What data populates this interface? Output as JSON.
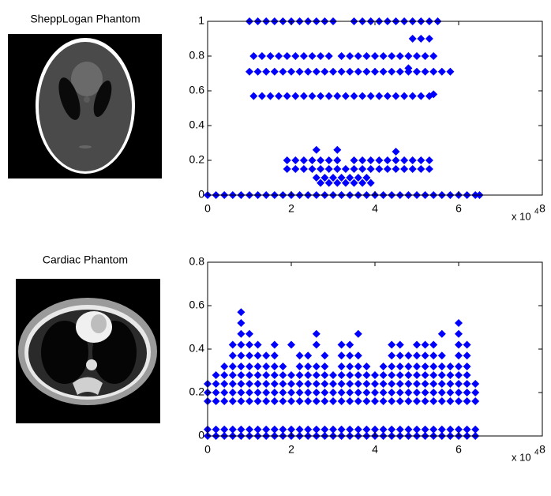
{
  "chart_data": [
    {
      "type": "scatter",
      "title": "SheppLogan Phantom",
      "color": "#0000ff",
      "xlim": [
        0,
        8
      ],
      "xticks": [
        0,
        2,
        4,
        6,
        8
      ],
      "ylim": [
        0,
        1
      ],
      "yticks": [
        0,
        0.2,
        0.4,
        0.6,
        0.8,
        1
      ],
      "x_multiplier": {
        "base": "x 10",
        "exponent": "4"
      },
      "rows": [
        {
          "y": 1,
          "x": [
            1,
            1.2,
            1.4,
            1.6,
            1.8,
            2,
            2.2,
            2.4,
            2.6,
            2.8,
            3,
            3.5,
            3.7,
            3.9,
            4.1,
            4.3,
            4.5,
            4.7,
            4.9,
            5.1,
            5.3,
            5.5
          ]
        },
        {
          "y": 0.9,
          "x": [
            4.9,
            5.1,
            5.3
          ]
        },
        {
          "y": 0.8,
          "x": [
            1.1,
            1.3,
            1.5,
            1.7,
            1.9,
            2.1,
            2.3,
            2.5,
            2.7,
            2.9,
            3.2,
            3.4,
            3.6,
            3.8,
            4,
            4.2,
            4.4,
            4.6,
            4.8,
            5,
            5.2,
            5.4
          ]
        },
        {
          "y": 0.71,
          "x": [
            1,
            1.2,
            1.4,
            1.6,
            1.8,
            2,
            2.2,
            2.4,
            2.6,
            2.8,
            3,
            3.2,
            3.4,
            3.6,
            3.8,
            4,
            4.2,
            4.4,
            4.6,
            4.8,
            5,
            5.2,
            5.4,
            5.6,
            5.8
          ]
        },
        {
          "y": 0.57,
          "x": [
            1.1,
            1.3,
            1.5,
            1.7,
            1.9,
            2.1,
            2.3,
            2.5,
            2.7,
            2.9,
            3.1,
            3.3,
            3.5,
            3.7,
            3.9,
            4.1,
            4.3,
            4.5,
            4.7,
            4.9,
            5.1,
            5.3
          ]
        },
        {
          "y": 0.2,
          "x": [
            1.9,
            2.1,
            2.3,
            2.5,
            2.7,
            2.9,
            3.1,
            3.5,
            3.7,
            3.9,
            4.1,
            4.3,
            4.5,
            4.7,
            4.9,
            5.1,
            5.3
          ]
        },
        {
          "y": 0.15,
          "x": [
            1.9,
            2.1,
            2.3,
            2.5,
            2.7,
            2.9,
            3.1,
            3.3,
            3.5,
            3.7,
            3.9,
            4.1,
            4.3,
            4.5,
            4.7,
            4.9,
            5.1,
            5.3
          ]
        },
        {
          "y": 0.1,
          "x": [
            2.6,
            2.8,
            3,
            3.2,
            3.4,
            3.6,
            3.8
          ]
        },
        {
          "y": 0.07,
          "x": [
            2.7,
            2.9,
            3.1,
            3.3,
            3.5,
            3.7,
            3.9
          ]
        },
        {
          "y": 0.26,
          "x": [
            2.6,
            3.1
          ]
        },
        {
          "y": 0.25,
          "x": [
            4.5
          ]
        },
        {
          "y": 0.73,
          "x": [
            4.8
          ]
        },
        {
          "y": 0.58,
          "x": [
            5.4
          ]
        },
        {
          "y": 0,
          "x": [
            0,
            0.2,
            0.4,
            0.6,
            0.8,
            1,
            1.2,
            1.4,
            1.6,
            1.8,
            2,
            2.2,
            2.4,
            2.6,
            2.8,
            3,
            3.2,
            3.4,
            3.6,
            3.8,
            4,
            4.2,
            4.4,
            4.6,
            4.8,
            5,
            5.2,
            5.4,
            5.6,
            5.8,
            6,
            6.2,
            6.4,
            6.5
          ]
        }
      ]
    },
    {
      "type": "scatter",
      "title": "Cardiac Phantom",
      "color": "#0000ff",
      "xlim": [
        0,
        8
      ],
      "xticks": [
        0,
        2,
        4,
        6,
        8
      ],
      "ylim": [
        0,
        0.8
      ],
      "yticks": [
        0,
        0.2,
        0.4,
        0.6,
        0.8
      ],
      "x_multiplier": {
        "base": "x 10",
        "exponent": "4"
      },
      "rows": [
        {
          "y": 0,
          "x": [
            0,
            0.2,
            0.4,
            0.6,
            0.8,
            1,
            1.2,
            1.4,
            1.6,
            1.8,
            2,
            2.2,
            2.4,
            2.6,
            2.8,
            3,
            3.2,
            3.4,
            3.6,
            3.8,
            4,
            4.2,
            4.4,
            4.6,
            4.8,
            5,
            5.2,
            5.4,
            5.6,
            5.8,
            6,
            6.2,
            6.4
          ]
        },
        {
          "y": 0.03,
          "x": [
            0,
            0.2,
            0.4,
            0.6,
            0.8,
            1,
            1.2,
            1.4,
            1.6,
            1.8,
            2,
            2.2,
            2.4,
            2.6,
            2.8,
            3,
            3.2,
            3.4,
            3.6,
            3.8,
            4,
            4.2,
            4.4,
            4.6,
            4.8,
            5,
            5.2,
            5.4,
            5.6,
            5.8,
            6,
            6.2,
            6.4
          ]
        },
        {
          "y": 0.16,
          "x": [
            0,
            0.2,
            0.4,
            0.6,
            0.8,
            1,
            1.2,
            1.4,
            1.6,
            1.8,
            2,
            2.2,
            2.4,
            2.6,
            2.8,
            3,
            3.2,
            3.4,
            3.6,
            3.8,
            4,
            4.2,
            4.4,
            4.6,
            4.8,
            5,
            5.2,
            5.4,
            5.6,
            5.8,
            6,
            6.2,
            6.4
          ]
        },
        {
          "y": 0.2,
          "x": [
            0,
            0.2,
            0.4,
            0.6,
            0.8,
            1,
            1.2,
            1.4,
            1.6,
            1.8,
            2,
            2.2,
            2.4,
            2.6,
            2.8,
            3,
            3.2,
            3.4,
            3.6,
            3.8,
            4,
            4.2,
            4.4,
            4.6,
            4.8,
            5,
            5.2,
            5.4,
            5.6,
            5.8,
            6,
            6.2,
            6.4
          ]
        },
        {
          "y": 0.24,
          "x": [
            0,
            0.2,
            0.4,
            0.6,
            0.8,
            1,
            1.2,
            1.4,
            1.6,
            1.8,
            2,
            2.2,
            2.4,
            2.6,
            2.8,
            3,
            3.2,
            3.4,
            3.6,
            3.8,
            4,
            4.2,
            4.4,
            4.6,
            4.8,
            5,
            5.2,
            5.4,
            5.6,
            5.8,
            6,
            6.2,
            6.4
          ]
        },
        {
          "y": 0.28,
          "x": [
            0.2,
            0.4,
            0.6,
            0.8,
            1,
            1.2,
            1.4,
            1.6,
            1.8,
            2,
            2.2,
            2.4,
            2.6,
            2.8,
            3,
            3.2,
            3.4,
            3.6,
            3.8,
            4,
            4.2,
            4.4,
            4.6,
            4.8,
            5,
            5.2,
            5.4,
            5.6,
            5.8,
            6,
            6.2
          ]
        },
        {
          "y": 0.32,
          "x": [
            0.4,
            0.6,
            0.8,
            1,
            1.2,
            1.4,
            1.6,
            1.8,
            2.2,
            2.4,
            2.6,
            2.8,
            3.2,
            3.4,
            3.6,
            3.8,
            4.2,
            4.4,
            4.6,
            4.8,
            5,
            5.2,
            5.4,
            5.6,
            5.8,
            6,
            6.2
          ]
        },
        {
          "y": 0.37,
          "x": [
            0.6,
            0.8,
            1,
            1.2,
            1.4,
            1.6,
            2.2,
            2.4,
            2.8,
            3.2,
            3.4,
            3.6,
            4.4,
            4.6,
            4.8,
            5,
            5.2,
            5.4,
            5.6,
            6,
            6.2
          ]
        },
        {
          "y": 0.42,
          "x": [
            0.6,
            0.8,
            1,
            1.2,
            1.6,
            2,
            2.6,
            3.2,
            3.4,
            4.4,
            4.6,
            5,
            5.2,
            5.4,
            6,
            6.2
          ]
        },
        {
          "y": 0.47,
          "x": [
            0.8,
            1,
            2.6,
            3.6,
            5.6,
            6
          ]
        },
        {
          "y": 0.52,
          "x": [
            0.8,
            6
          ]
        },
        {
          "y": 0.57,
          "x": [
            0.8
          ]
        }
      ]
    }
  ]
}
